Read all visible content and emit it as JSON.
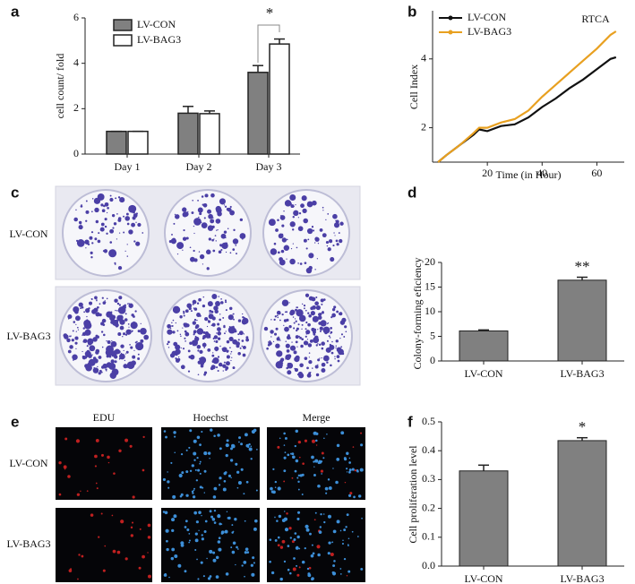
{
  "panel_letters": [
    "a",
    "b",
    "c",
    "d",
    "e",
    "f"
  ],
  "colony_image": {
    "rows": [
      "LV-CON",
      "LV-BAG3"
    ]
  },
  "edu_image": {
    "columns": [
      "EDU",
      "Hoechst",
      "Merge"
    ],
    "rows": [
      "LV-CON",
      "LV-BAG3"
    ]
  },
  "chart_data": [
    {
      "type": "bar",
      "y_label": "cell count/ fold",
      "annotation": "*",
      "categories": [
        "Day 1",
        "Day 2",
        "Day 3"
      ],
      "series": [
        {
          "name": "LV-CON",
          "color": "#808080",
          "values": [
            1,
            1.8,
            3.6
          ],
          "errors": [
            0,
            0.3,
            0.3
          ]
        },
        {
          "name": "LV-BAG3",
          "color": "#ffffff",
          "values": [
            1,
            1.78,
            4.85
          ],
          "errors": [
            0,
            0.12,
            0.22
          ]
        }
      ],
      "ylim": [
        0,
        6
      ],
      "yticks": [
        0,
        2,
        4,
        6
      ]
    },
    {
      "type": "line",
      "x_label": "Time (in Hour)",
      "y_label": "Cell Index",
      "annotation": "RTCA",
      "x": [
        2,
        5,
        10,
        15,
        17,
        20,
        25,
        30,
        35,
        40,
        45,
        50,
        55,
        60,
        65,
        67
      ],
      "series": [
        {
          "name": "LV-CON",
          "color": "#111111",
          "values": [
            1.0,
            1.2,
            1.5,
            1.8,
            1.95,
            1.9,
            2.05,
            2.1,
            2.3,
            2.6,
            2.85,
            3.15,
            3.4,
            3.7,
            4.0,
            4.05
          ]
        },
        {
          "name": "LV-BAG3",
          "color": "#e8a020",
          "values": [
            1.0,
            1.2,
            1.5,
            1.85,
            2.0,
            2.0,
            2.15,
            2.25,
            2.5,
            2.9,
            3.25,
            3.6,
            3.95,
            4.3,
            4.7,
            4.8
          ]
        }
      ],
      "xlim": [
        0,
        70
      ],
      "xticks": [
        20,
        40,
        60
      ],
      "ylim": [
        1,
        5.4
      ],
      "yticks": [
        2,
        4
      ]
    },
    {
      "type": "bar",
      "y_label": "Colony-forming eficiency",
      "annotation": "**",
      "categories": [
        "LV-CON",
        "LV-BAG3"
      ],
      "color": "#808080",
      "values": [
        6.1,
        16.4
      ],
      "errors": [
        0.2,
        0.6
      ],
      "ylim": [
        0,
        20
      ],
      "yticks": [
        0,
        5,
        10,
        15,
        20
      ]
    },
    {
      "type": "bar",
      "y_label": "Cell proliferation level",
      "annotation": "*",
      "categories": [
        "LV-CON",
        "LV-BAG3"
      ],
      "color": "#808080",
      "values": [
        0.33,
        0.435
      ],
      "errors": [
        0.02,
        0.01
      ],
      "ylim": [
        0,
        0.5
      ],
      "yticks": [
        {
          "value": 0,
          "label": "0.0"
        },
        0.1,
        0.2,
        0.3,
        0.4,
        0.5
      ]
    }
  ]
}
